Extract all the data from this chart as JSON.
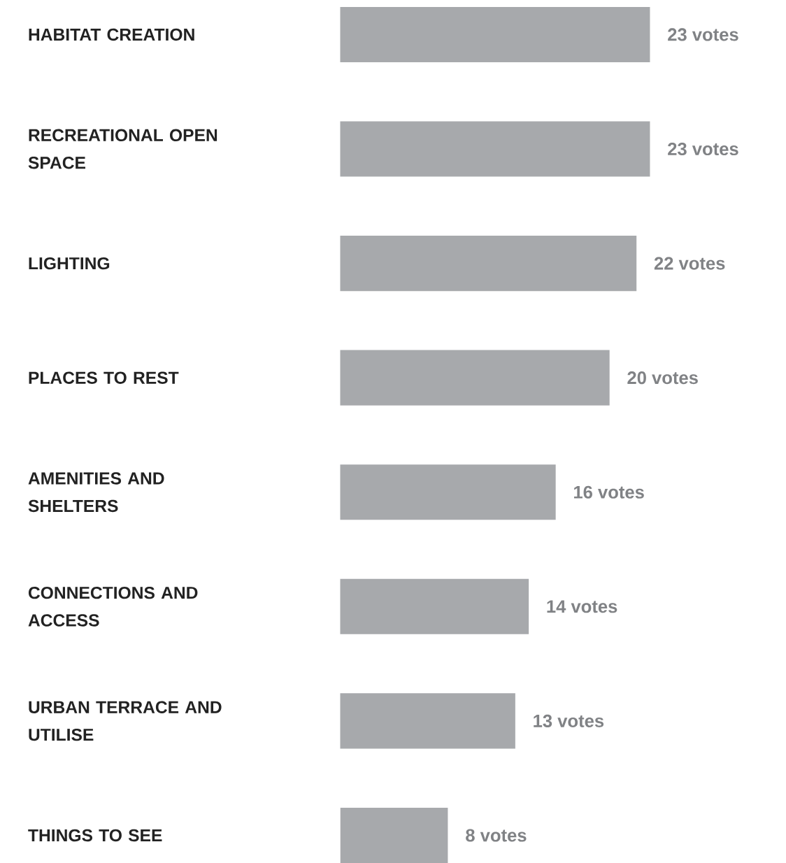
{
  "chart_data": {
    "type": "bar",
    "orientation": "horizontal",
    "categories": [
      "HABITAT CREATION",
      "RECREATIONAL OPEN SPACE",
      "LIGHTING",
      "PLACES TO REST",
      "AMENITIES AND SHELTERS",
      "CONNECTIONS AND ACCESS",
      "URBAN TERRACE AND UTILISE",
      "THINGS TO SEE"
    ],
    "values": [
      23,
      23,
      22,
      20,
      16,
      14,
      13,
      8
    ],
    "value_labels": [
      "23 votes",
      "23 votes",
      "22 votes",
      "20 votes",
      "16 votes",
      "14 votes",
      "13 votes",
      "8 votes"
    ],
    "color": "#a7a9ac"
  }
}
